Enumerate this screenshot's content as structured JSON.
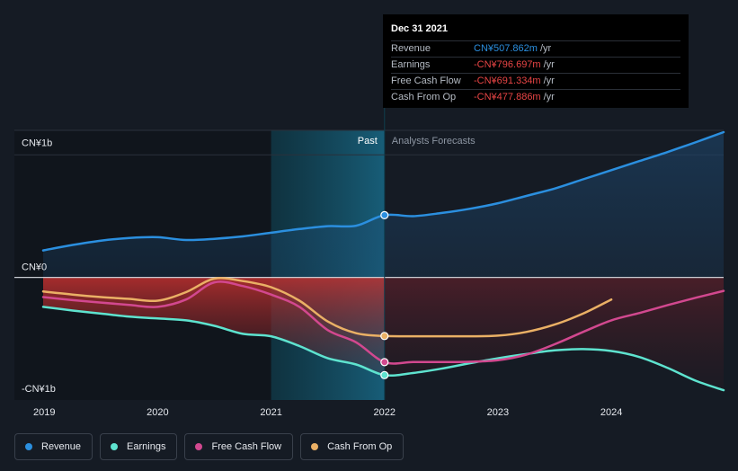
{
  "chart_data": {
    "type": "line",
    "y_tick_labels": [
      "CN¥1b",
      "CN¥0",
      "-CN¥1b"
    ],
    "y_ticks": [
      1000,
      0,
      -1000
    ],
    "ylim": [
      -1000,
      1200
    ],
    "xlim": [
      2018.99,
      2024.99
    ],
    "x_ticks": [
      2019,
      2020,
      2021,
      2022,
      2023,
      2024
    ],
    "x_tick_labels": [
      "2019",
      "2020",
      "2021",
      "2022",
      "2023",
      "2024"
    ],
    "past_label": "Past",
    "forecast_label": "Analysts Forecasts",
    "present_x": 2022.0,
    "highlight_start_x": 2021.0,
    "grid": false,
    "legend_position": "bottom-left",
    "series": [
      {
        "name": "Revenue",
        "color": "#2b8fdf",
        "points": [
          [
            2018.99,
            220
          ],
          [
            2019.25,
            265
          ],
          [
            2019.5,
            300
          ],
          [
            2019.75,
            322
          ],
          [
            2020.0,
            328
          ],
          [
            2020.25,
            305
          ],
          [
            2020.5,
            315
          ],
          [
            2020.75,
            335
          ],
          [
            2021.0,
            365
          ],
          [
            2021.25,
            395
          ],
          [
            2021.5,
            418
          ],
          [
            2021.75,
            422
          ],
          [
            2022.0,
            508
          ],
          [
            2022.25,
            500
          ],
          [
            2022.5,
            525
          ],
          [
            2022.75,
            560
          ],
          [
            2023.0,
            605
          ],
          [
            2023.25,
            665
          ],
          [
            2023.5,
            725
          ],
          [
            2023.75,
            800
          ],
          [
            2024.0,
            875
          ],
          [
            2024.25,
            950
          ],
          [
            2024.5,
            1025
          ],
          [
            2024.75,
            1105
          ],
          [
            2024.99,
            1185
          ]
        ]
      },
      {
        "name": "Earnings",
        "color": "#5ee3cf",
        "points": [
          [
            2018.99,
            -240
          ],
          [
            2019.25,
            -270
          ],
          [
            2019.5,
            -295
          ],
          [
            2019.75,
            -320
          ],
          [
            2020.0,
            -335
          ],
          [
            2020.25,
            -350
          ],
          [
            2020.5,
            -395
          ],
          [
            2020.75,
            -460
          ],
          [
            2021.0,
            -480
          ],
          [
            2021.25,
            -560
          ],
          [
            2021.5,
            -660
          ],
          [
            2021.75,
            -710
          ],
          [
            2022.0,
            -797
          ],
          [
            2022.25,
            -780
          ],
          [
            2022.5,
            -745
          ],
          [
            2022.75,
            -700
          ],
          [
            2023.0,
            -660
          ],
          [
            2023.25,
            -625
          ],
          [
            2023.5,
            -595
          ],
          [
            2023.75,
            -585
          ],
          [
            2024.0,
            -600
          ],
          [
            2024.25,
            -650
          ],
          [
            2024.5,
            -740
          ],
          [
            2024.75,
            -845
          ],
          [
            2024.99,
            -920
          ]
        ]
      },
      {
        "name": "Free Cash Flow",
        "color": "#d2488f",
        "points": [
          [
            2018.99,
            -160
          ],
          [
            2019.25,
            -185
          ],
          [
            2019.5,
            -205
          ],
          [
            2019.75,
            -225
          ],
          [
            2020.0,
            -240
          ],
          [
            2020.25,
            -180
          ],
          [
            2020.5,
            -40
          ],
          [
            2020.75,
            -70
          ],
          [
            2021.0,
            -140
          ],
          [
            2021.25,
            -240
          ],
          [
            2021.5,
            -430
          ],
          [
            2021.75,
            -530
          ],
          [
            2022.0,
            -691
          ],
          [
            2022.25,
            -690
          ],
          [
            2022.5,
            -690
          ],
          [
            2022.75,
            -688
          ],
          [
            2023.0,
            -675
          ],
          [
            2023.25,
            -630
          ],
          [
            2023.5,
            -545
          ],
          [
            2023.75,
            -445
          ],
          [
            2024.0,
            -350
          ],
          [
            2024.25,
            -290
          ],
          [
            2024.5,
            -225
          ],
          [
            2024.75,
            -165
          ],
          [
            2024.99,
            -110
          ]
        ]
      },
      {
        "name": "Cash From Op",
        "color": "#eab065",
        "points": [
          [
            2018.99,
            -115
          ],
          [
            2019.25,
            -140
          ],
          [
            2019.5,
            -160
          ],
          [
            2019.75,
            -175
          ],
          [
            2020.0,
            -190
          ],
          [
            2020.25,
            -120
          ],
          [
            2020.5,
            -10
          ],
          [
            2020.75,
            -30
          ],
          [
            2021.0,
            -80
          ],
          [
            2021.25,
            -190
          ],
          [
            2021.5,
            -360
          ],
          [
            2021.75,
            -455
          ],
          [
            2022.0,
            -478
          ],
          [
            2022.25,
            -480
          ],
          [
            2022.5,
            -480
          ],
          [
            2022.75,
            -480
          ],
          [
            2023.0,
            -475
          ],
          [
            2023.25,
            -445
          ],
          [
            2023.5,
            -385
          ],
          [
            2023.75,
            -295
          ],
          [
            2024.0,
            -180
          ]
        ]
      }
    ]
  },
  "tooltip": {
    "date": "Dec 31 2021",
    "rows": [
      {
        "label": "Revenue",
        "value": "CN¥507.862m",
        "unit": "/yr",
        "color": "#2b8fdf"
      },
      {
        "label": "Earnings",
        "value": "-CN¥796.697m",
        "unit": "/yr",
        "color": "#e84545"
      },
      {
        "label": "Free Cash Flow",
        "value": "-CN¥691.334m",
        "unit": "/yr",
        "color": "#e84545"
      },
      {
        "label": "Cash From Op",
        "value": "-CN¥477.886m",
        "unit": "/yr",
        "color": "#e84545"
      }
    ]
  },
  "legend": [
    {
      "label": "Revenue",
      "color": "#2b8fdf"
    },
    {
      "label": "Earnings",
      "color": "#5ee3cf"
    },
    {
      "label": "Free Cash Flow",
      "color": "#d2488f"
    },
    {
      "label": "Cash From Op",
      "color": "#eab065"
    }
  ]
}
